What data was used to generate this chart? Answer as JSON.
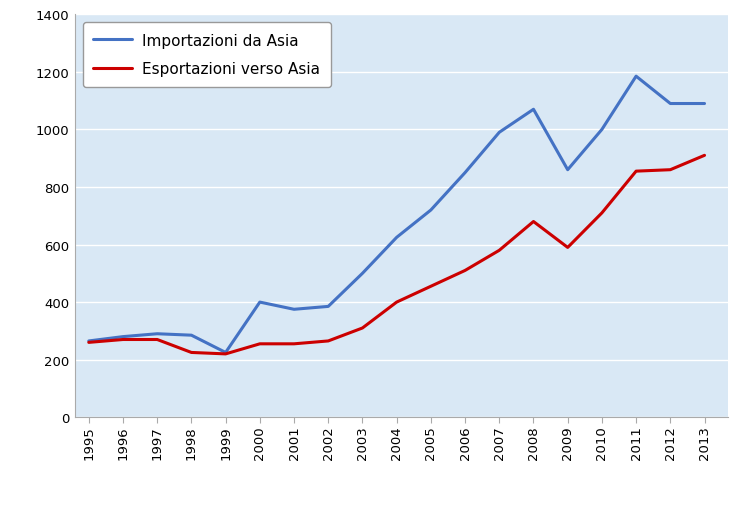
{
  "years": [
    1995,
    1996,
    1997,
    1998,
    1999,
    2000,
    2001,
    2002,
    2003,
    2004,
    2005,
    2006,
    2007,
    2008,
    2009,
    2010,
    2011,
    2012,
    2013
  ],
  "importazioni": [
    265,
    280,
    290,
    285,
    225,
    400,
    375,
    385,
    500,
    625,
    720,
    850,
    990,
    1070,
    860,
    1000,
    1185,
    1090,
    1090
  ],
  "esportazioni": [
    260,
    270,
    270,
    225,
    220,
    255,
    255,
    265,
    310,
    400,
    455,
    510,
    580,
    680,
    590,
    710,
    855,
    860,
    910
  ],
  "import_color": "#4472C4",
  "export_color": "#CC0000",
  "import_label": "Importazioni da Asia",
  "export_label": "Esportazioni verso Asia",
  "plot_bg_color": "#D9E8F5",
  "fig_bg_color": "#FFFFFF",
  "grid_color": "#FFFFFF",
  "border_color": "#AAAAAA",
  "ylim": [
    0,
    1400
  ],
  "yticks": [
    0,
    200,
    400,
    600,
    800,
    1000,
    1200,
    1400
  ],
  "xlim_left": 1994.6,
  "xlim_right": 2013.7,
  "line_width": 2.2,
  "legend_fontsize": 11,
  "tick_fontsize": 9.5
}
